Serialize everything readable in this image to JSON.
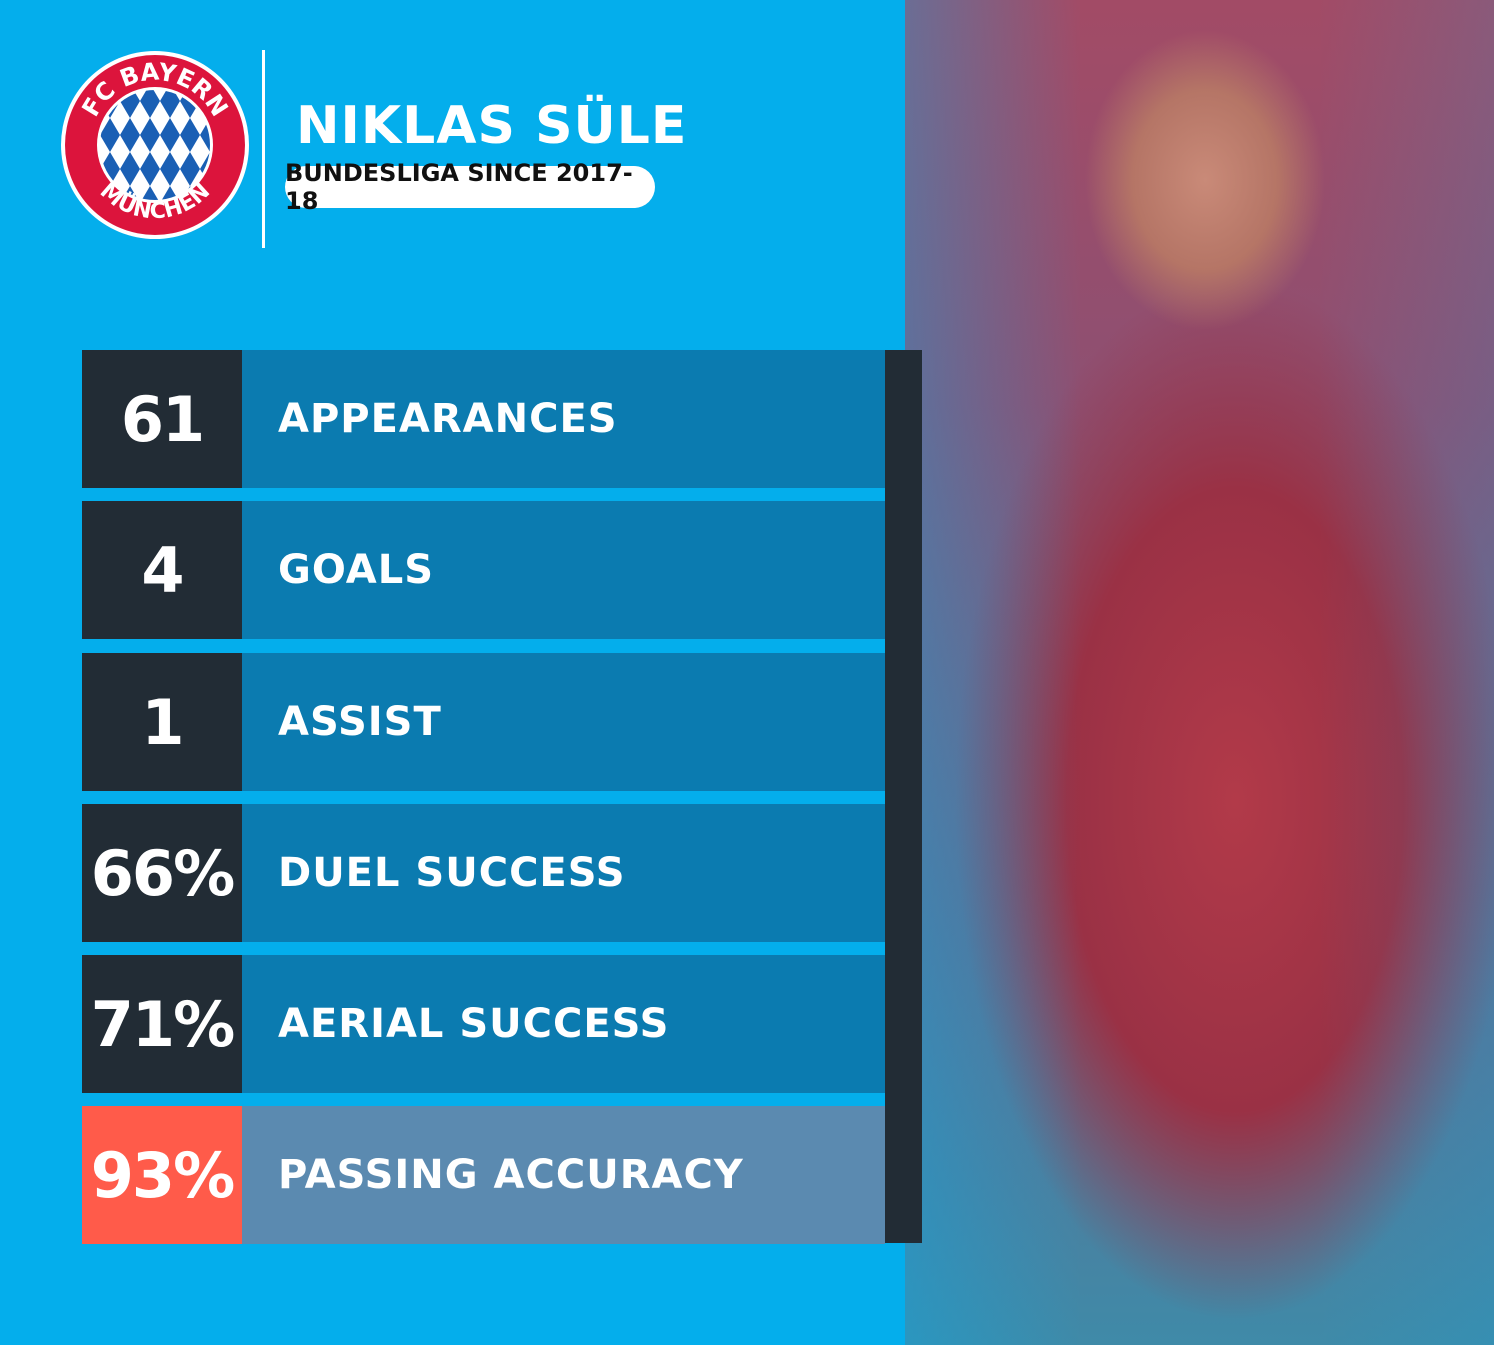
{
  "header": {
    "club_logo_text": [
      "FC BAYERN",
      "MÜNCHEN"
    ],
    "player_name": "NIKLAS SÜLE",
    "subtitle": "BUNDESLIGA SINCE 2017-18"
  },
  "colors": {
    "background": "#04aeec",
    "number_box": "#222c35",
    "label_box": "#0b7bb0",
    "highlight_number": "#ff5b4a",
    "highlight_label": "#5b8ab0"
  },
  "stats": [
    {
      "value": "61",
      "label": "APPEARANCES"
    },
    {
      "value": "4",
      "label": "GOALS"
    },
    {
      "value": "1",
      "label": "ASSIST"
    },
    {
      "value": "66%",
      "label": "DUEL SUCCESS"
    },
    {
      "value": "71%",
      "label": "AERIAL SUCCESS"
    },
    {
      "value": "93%",
      "label": "PASSING ACCURACY",
      "highlight": true
    }
  ]
}
